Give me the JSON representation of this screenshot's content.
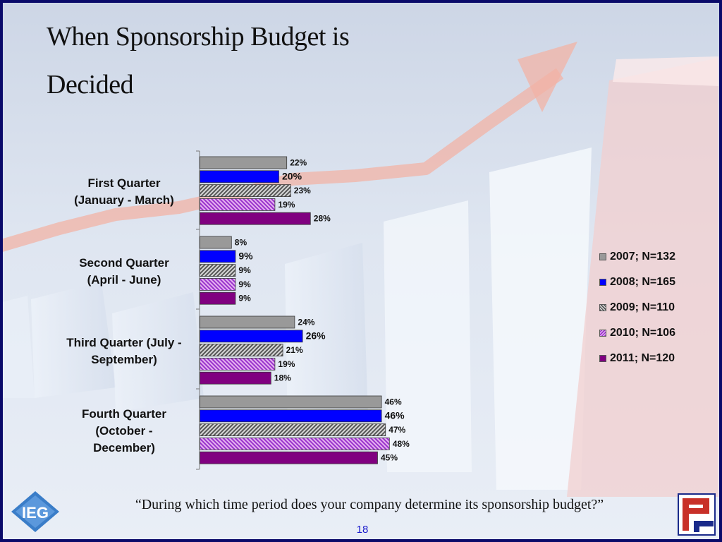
{
  "slide": {
    "title": "When Sponsorship Budget is Decided",
    "question": "“During which time period does your company determine its sponsorship budget?”",
    "page_number": "18",
    "logo_left_text": "IEG",
    "logo_right_text": "P"
  },
  "chart_data": {
    "type": "bar",
    "orientation": "horizontal",
    "categories": [
      "First Quarter (January - March)",
      "Second Quarter (April - June)",
      "Third Quarter (July - September)",
      "Fourth Quarter (October - December)"
    ],
    "category_lines": [
      [
        "First Quarter",
        "(January - March)"
      ],
      [
        "Second Quarter",
        "(April - June)"
      ],
      [
        "Third Quarter (July -",
        "September)"
      ],
      [
        "Fourth Quarter",
        "(October -",
        "December)"
      ]
    ],
    "series": [
      {
        "name": "2007; N=132",
        "values": [
          22,
          8,
          24,
          46
        ],
        "color": "#999999",
        "pattern": "solid"
      },
      {
        "name": "2008; N=165",
        "values": [
          20,
          9,
          26,
          46
        ],
        "color": "#0000ff",
        "pattern": "solid"
      },
      {
        "name": "2009; N=110",
        "values": [
          23,
          9,
          21,
          47
        ],
        "color": "#666666",
        "pattern": "hatch-gray"
      },
      {
        "name": "2010; N=106",
        "values": [
          19,
          9,
          19,
          48
        ],
        "color": "#9933cc",
        "pattern": "hatch-purple"
      },
      {
        "name": "2011; N=120",
        "values": [
          28,
          9,
          18,
          45
        ],
        "color": "#800080",
        "pattern": "solid"
      }
    ],
    "value_suffix": "%",
    "legend_position": "right",
    "grid": false,
    "xlim": [
      0,
      50
    ]
  }
}
